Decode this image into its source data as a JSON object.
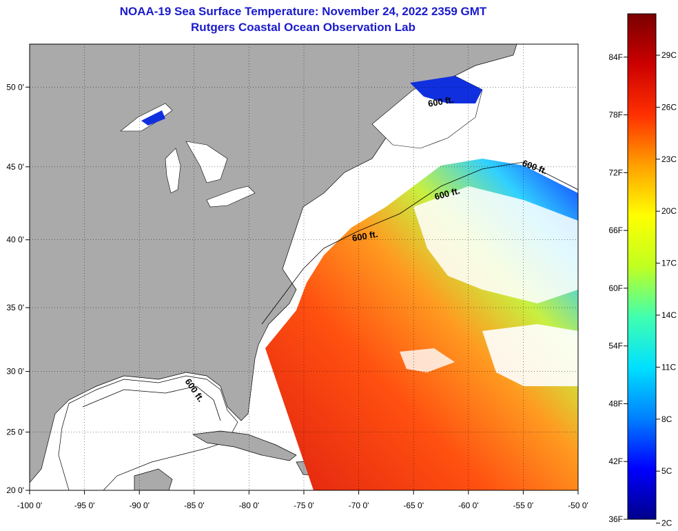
{
  "title": {
    "line1": "NOAA-19 Sea Surface Temperature:  November 24, 2022 2359 GMT",
    "line2": "Rutgers Coastal Ocean Observation Lab"
  },
  "axes": {
    "x_ticks": [
      "-100 0'",
      "-95 0'",
      "-90 0'",
      "-85 0'",
      "-80 0'",
      "-75 0'",
      "-70 0'",
      "-65 0'",
      "-60 0'",
      "-55 0'",
      "-50 0'"
    ],
    "y_ticks": [
      "20 0'",
      "25 0'",
      "30 0'",
      "35 0'",
      "40 0'",
      "45 0'",
      "50 0'"
    ],
    "lon_range": [
      -100,
      -50
    ],
    "lat_range": [
      20,
      52.5
    ]
  },
  "contour_label": "600 ft.",
  "colorbar": {
    "fahrenheit": [
      "36F",
      "42F",
      "48F",
      "54F",
      "60F",
      "66F",
      "72F",
      "78F",
      "84F"
    ],
    "celsius": [
      "2C",
      "5C",
      "8C",
      "11C",
      "14C",
      "17C",
      "20C",
      "23C",
      "26C",
      "29C"
    ],
    "stops": [
      "#00008b",
      "#0000ff",
      "#0080ff",
      "#00e0ff",
      "#40ffb0",
      "#c0ff20",
      "#ffff00",
      "#ffa000",
      "#ff3000",
      "#cc0000",
      "#7a0000"
    ]
  },
  "colors": {
    "land": "#aaaaaa",
    "water_no_data": "#ffffff",
    "coast": "#000000"
  }
}
